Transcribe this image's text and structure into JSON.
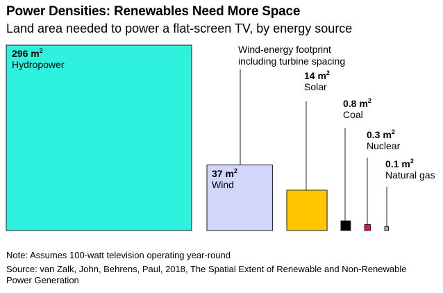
{
  "title": "Power Densities: Renewables Need More Space",
  "subtitle": "Land area needed to power a flat-screen TV, by energy source",
  "note": "Note: Assumes 100-watt television operating year-round",
  "source": "Source: van Zalk, John, Behrens, Paul, 2018, The Spatial Extent of Renewable and Non-Renewable Power Generation",
  "chart_data": {
    "type": "area-squares",
    "unit": "m",
    "unit_superscript": "2",
    "annotation": "Wind-energy footprint including turbine spacing",
    "series": [
      {
        "name": "Hydropower",
        "value": 296,
        "value_label": "296 m",
        "color": "#2ef1de"
      },
      {
        "name": "Wind",
        "value": 37,
        "value_label": "37 m",
        "color": "#d3d6fb"
      },
      {
        "name": "Solar",
        "value": 14,
        "value_label": "14 m",
        "color": "#ffc700"
      },
      {
        "name": "Coal",
        "value": 0.8,
        "value_label": "0.8 m",
        "color": "#000000"
      },
      {
        "name": "Nuclear",
        "value": 0.3,
        "value_label": "0.3 m",
        "color": "#e3124b"
      },
      {
        "name": "Natural gas",
        "value": 0.1,
        "value_label": "0.1 m",
        "color": "#b3b3b3"
      }
    ]
  }
}
